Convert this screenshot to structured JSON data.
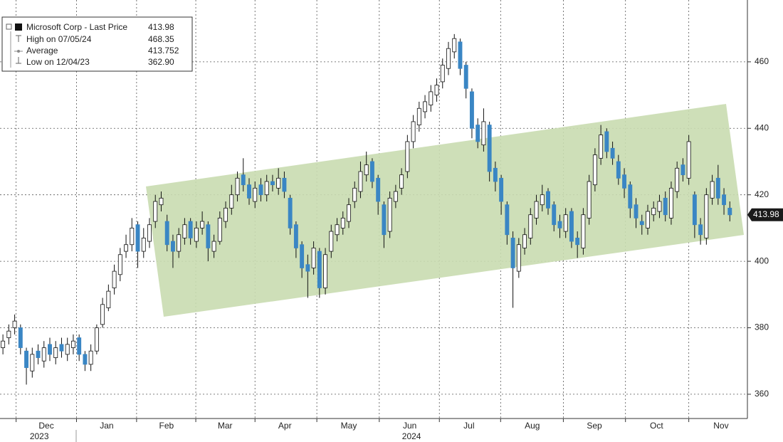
{
  "chart_data": {
    "type": "candlestick",
    "series_name": "Microsoft Corp - Last Price",
    "up_color": "#ffffff",
    "down_color": "#3a86c4",
    "grid": true,
    "legend": [
      {
        "text": "Microsoft Corp - Last Price",
        "value": 413.98
      },
      {
        "text": "High on 07/05/24",
        "value": 468.35
      },
      {
        "text": "Average",
        "value": 413.752
      },
      {
        "text": "Low on 12/04/23",
        "value": {
          "value": 362.9,
          "label": "362.90"
        }
      }
    ],
    "xlim": [
      -0.5,
      127
    ],
    "xticks": [
      {
        "value": 7.4,
        "label": "Dec"
      },
      {
        "value": 17.7,
        "label": "Jan"
      },
      {
        "value": 27.9,
        "label": "Feb"
      },
      {
        "value": 37.9,
        "label": "Mar"
      },
      {
        "value": 48.1,
        "label": "Apr"
      },
      {
        "value": 59,
        "label": "May"
      },
      {
        "value": 69.4,
        "label": "Jun"
      },
      {
        "value": 79.5,
        "label": "Jul"
      },
      {
        "value": 90.3,
        "label": "Aug"
      },
      {
        "value": 100.9,
        "label": "Sep"
      },
      {
        "value": 111.5,
        "label": "Oct"
      },
      {
        "value": 122.5,
        "label": "Nov"
      }
    ],
    "year_ticks": [
      {
        "value": 6.2,
        "label": "2023"
      },
      {
        "value": 69.7,
        "label": "2024"
      }
    ],
    "ylim": [
      352.7,
      478.6
    ],
    "yticks": [
      360,
      380,
      400,
      420,
      440,
      460
    ],
    "open": [
      374,
      377,
      380,
      380,
      373,
      367,
      373,
      370,
      375,
      371,
      375,
      372,
      374,
      377,
      372,
      369,
      373,
      381,
      386,
      392,
      396,
      403,
      405,
      411,
      403,
      406,
      412,
      417,
      412,
      406,
      403,
      407,
      412,
      406,
      410,
      411,
      403,
      406,
      412,
      416,
      420,
      426,
      423,
      418,
      423,
      420,
      424,
      422,
      425,
      419,
      411,
      405,
      399,
      398,
      403,
      392,
      403,
      408,
      410,
      412,
      418,
      421,
      426,
      430,
      425,
      417,
      409,
      418,
      422,
      427,
      436,
      441,
      445,
      447,
      450,
      454,
      458,
      463,
      466,
      459,
      451,
      441,
      435,
      441,
      428,
      425,
      417,
      407,
      397,
      404,
      407,
      413,
      417,
      421,
      417,
      412,
      409,
      415,
      407,
      404,
      413,
      423,
      431,
      439,
      434,
      430,
      426,
      423,
      417,
      412,
      410,
      414,
      415,
      419,
      413,
      421,
      429,
      425,
      420,
      411,
      407,
      419,
      425,
      420,
      416
    ],
    "high": [
      378,
      381,
      384,
      381,
      374,
      374,
      375,
      376,
      377,
      376,
      377,
      377,
      378,
      378,
      373,
      375,
      381,
      389,
      393,
      399,
      404,
      408,
      413,
      412,
      410,
      413,
      420,
      421,
      414,
      408,
      410,
      413,
      413,
      412,
      415,
      412,
      408,
      415,
      418,
      423,
      427,
      431,
      425,
      424,
      425,
      426,
      426,
      428,
      427,
      420,
      412,
      406,
      402,
      406,
      404,
      404,
      411,
      413,
      415,
      419,
      424,
      430,
      433,
      431,
      426,
      418,
      421,
      423,
      428,
      438,
      444,
      448,
      450,
      453,
      455,
      461,
      466,
      468.35,
      467,
      460,
      452,
      443,
      446,
      442,
      430,
      426,
      418,
      409,
      407,
      410,
      416,
      420,
      423,
      422,
      418,
      414,
      416,
      416,
      409,
      416,
      426,
      434,
      441,
      440,
      436,
      432,
      428,
      424,
      419,
      414,
      417,
      418,
      420,
      421,
      424,
      430,
      431,
      438,
      421,
      413,
      422,
      426,
      429,
      422,
      418
    ],
    "low": [
      372,
      375,
      378,
      372,
      362.9,
      365,
      369,
      368,
      370,
      369,
      371,
      370,
      372,
      370,
      367,
      367,
      372,
      380,
      385,
      390,
      394,
      401,
      403,
      398,
      401,
      404,
      410,
      415,
      403,
      398,
      401,
      405,
      405,
      404,
      408,
      400,
      401,
      405,
      410,
      414,
      418,
      421,
      417,
      416,
      418,
      418,
      421,
      420,
      419,
      408,
      401,
      395,
      389,
      396,
      389,
      390,
      401,
      406,
      408,
      410,
      416,
      419,
      424,
      422,
      414,
      404,
      407,
      416,
      420,
      425,
      434,
      439,
      443,
      445,
      448,
      452,
      456,
      461,
      456,
      449,
      437,
      434,
      433,
      424,
      421,
      414,
      405,
      386,
      395,
      402,
      405,
      411,
      415,
      414,
      409,
      407,
      407,
      404,
      401,
      402,
      411,
      421,
      429,
      431,
      429,
      423,
      419,
      413,
      410,
      408,
      408,
      412,
      413,
      412,
      411,
      419,
      424,
      423,
      407,
      405,
      405,
      417,
      417,
      414,
      412
    ],
    "close": [
      376,
      379,
      382,
      374,
      368,
      372,
      371,
      374,
      372,
      374,
      373,
      375,
      376,
      372,
      369,
      373,
      380,
      387,
      391,
      397,
      402,
      405,
      410,
      403,
      407,
      411,
      418,
      419,
      405,
      403,
      408,
      411,
      407,
      410,
      412,
      404,
      406,
      413,
      416,
      420,
      425,
      423,
      419,
      422,
      420,
      424,
      423,
      425,
      421,
      410,
      404,
      398,
      397,
      404,
      392,
      402,
      409,
      411,
      413,
      417,
      422,
      427,
      429,
      424,
      418,
      408,
      419,
      421,
      426,
      436,
      442,
      446,
      448,
      451,
      453,
      459,
      464,
      467,
      458,
      452,
      440,
      436,
      442,
      427,
      424,
      418,
      408,
      398,
      405,
      408,
      414,
      418,
      420,
      416,
      411,
      410,
      414,
      406,
      405,
      414,
      424,
      432,
      438,
      433,
      431,
      425,
      422,
      416,
      413,
      411,
      415,
      416,
      418,
      414,
      422,
      428,
      426,
      436,
      411,
      408,
      420,
      424,
      419,
      417,
      413.98
    ]
  }
}
